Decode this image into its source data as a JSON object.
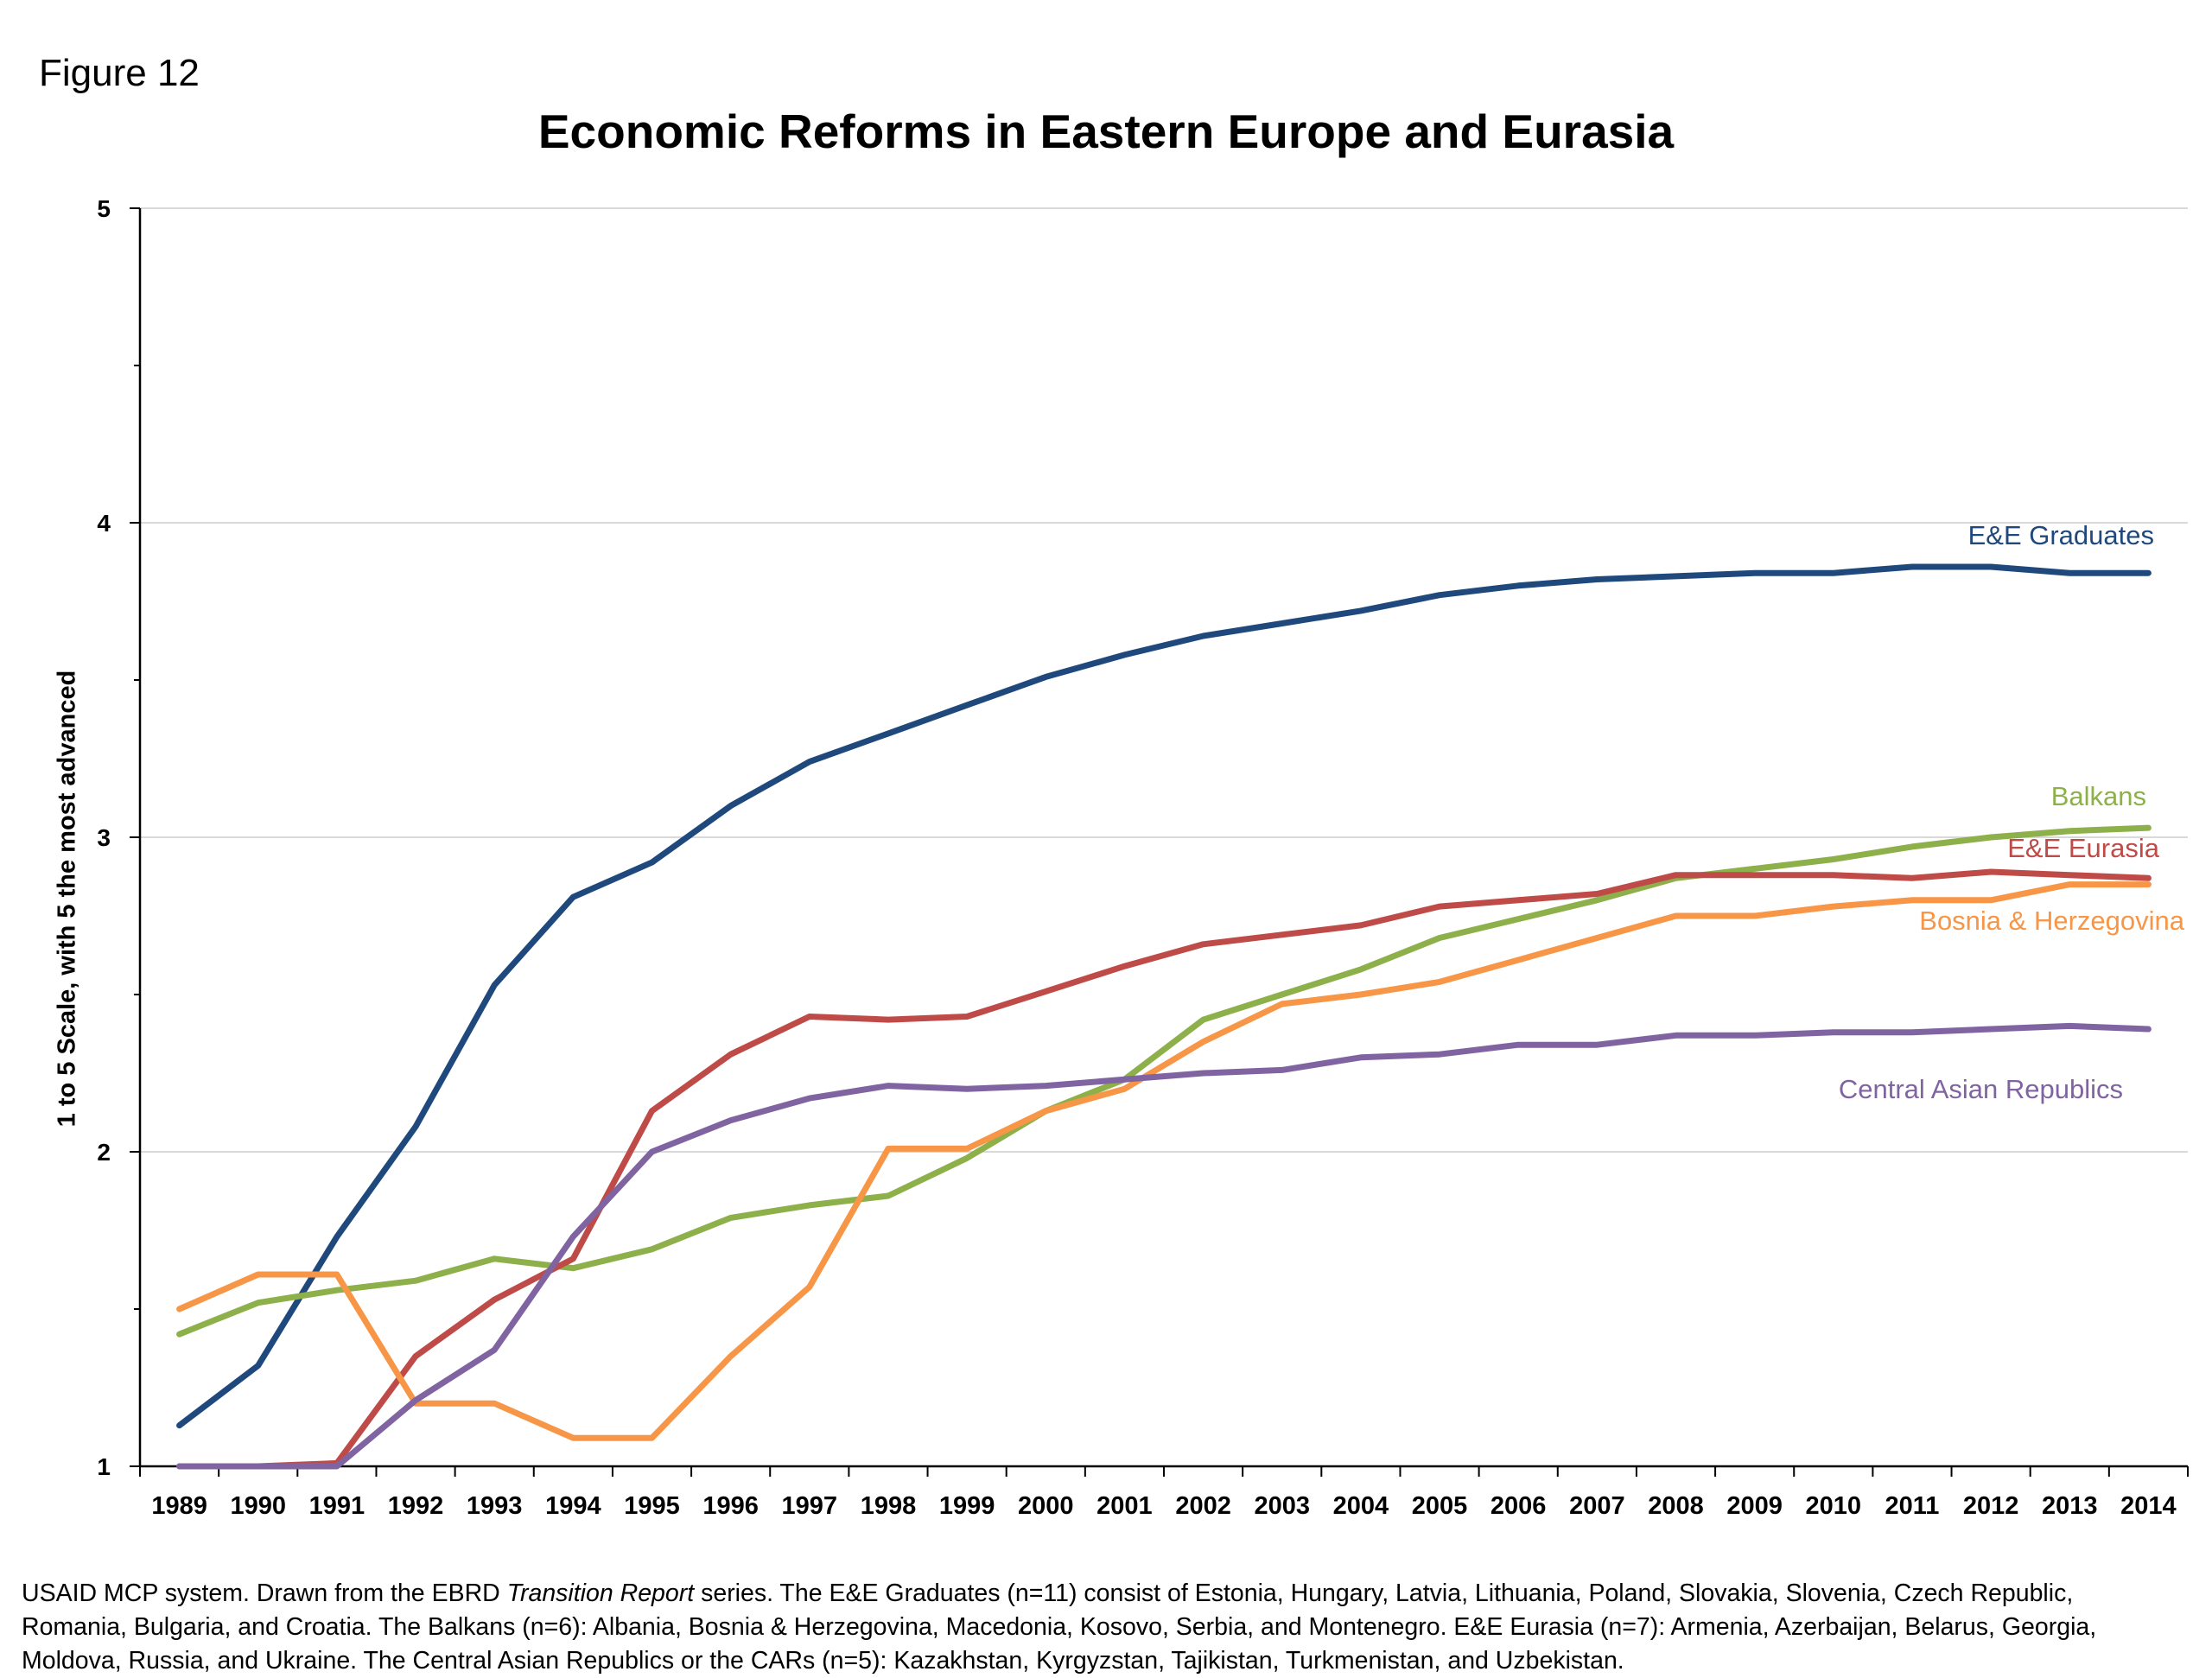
{
  "figure_label": "Figure 12",
  "chart_data": {
    "type": "line",
    "title": "Economic Reforms in Eastern Europe and Eurasia",
    "xlabel": "",
    "ylabel": "1 to 5 Scale, with 5 the most advanced",
    "ylim": [
      1,
      5
    ],
    "yticks": [
      "1",
      "2",
      "3",
      "4",
      "5"
    ],
    "grid": true,
    "legend": "inline labels at right",
    "categories": [
      "1989",
      "1990",
      "1991",
      "1992",
      "1993",
      "1994",
      "1995",
      "1996",
      "1997",
      "1998",
      "1999",
      "2000",
      "2001",
      "2002",
      "2003",
      "2004",
      "2005",
      "2006",
      "2007",
      "2008",
      "2009",
      "2010",
      "2011",
      "2012",
      "2013",
      "2014"
    ],
    "series": [
      {
        "name": "E&E Graduates",
        "color": "#1F497D",
        "values": [
          1.13,
          1.32,
          1.73,
          2.08,
          2.53,
          2.81,
          2.92,
          3.1,
          3.24,
          3.33,
          3.42,
          3.51,
          3.58,
          3.64,
          3.68,
          3.72,
          3.77,
          3.8,
          3.82,
          3.83,
          3.84,
          3.84,
          3.86,
          3.86,
          3.84,
          3.84
        ]
      },
      {
        "name": "Balkans",
        "color": "#8DB04A",
        "values": [
          1.42,
          1.52,
          1.56,
          1.59,
          1.66,
          1.63,
          1.69,
          1.79,
          1.83,
          1.86,
          1.98,
          2.13,
          2.23,
          2.42,
          2.5,
          2.58,
          2.68,
          2.74,
          2.8,
          2.87,
          2.9,
          2.93,
          2.97,
          3.0,
          3.02,
          3.03
        ]
      },
      {
        "name": "E&E Eurasia",
        "color": "#BE4B48",
        "values": [
          1.0,
          1.0,
          1.01,
          1.35,
          1.53,
          1.66,
          2.13,
          2.31,
          2.43,
          2.42,
          2.43,
          2.51,
          2.59,
          2.66,
          2.69,
          2.72,
          2.78,
          2.8,
          2.82,
          2.88,
          2.88,
          2.88,
          2.87,
          2.89,
          2.88,
          2.87
        ]
      },
      {
        "name": "Bosnia & Herzegovina",
        "color": "#F79646",
        "values": [
          1.5,
          1.61,
          1.61,
          1.2,
          1.2,
          1.09,
          1.09,
          1.35,
          1.57,
          2.01,
          2.01,
          2.13,
          2.2,
          2.35,
          2.47,
          2.5,
          2.54,
          2.61,
          2.68,
          2.75,
          2.75,
          2.78,
          2.8,
          2.8,
          2.85,
          2.85
        ]
      },
      {
        "name": "Central Asian Republics",
        "color": "#8064A2",
        "values": [
          1.0,
          1.0,
          1.0,
          1.21,
          1.37,
          1.73,
          2.0,
          2.1,
          2.17,
          2.21,
          2.2,
          2.21,
          2.23,
          2.25,
          2.26,
          2.3,
          2.31,
          2.34,
          2.34,
          2.37,
          2.37,
          2.38,
          2.38,
          2.39,
          2.4,
          2.39
        ]
      }
    ]
  },
  "note": {
    "line1_before": "USAID MCP system. Drawn from the EBRD ",
    "line1_italic": "Transition Report",
    "line1_after": " series.  The E&E Graduates (n=11) consist of Estonia, Hungary, Latvia, Lithuania, Poland, Slovakia, Slovenia, Czech Republic,",
    "line2": "Romania, Bulgaria, and Croatia. The Balkans (n=6): Albania, Bosnia & Herzegovina, Macedonia, Kosovo, Serbia, and Montenegro. E&E Eurasia (n=7): Armenia, Azerbaijan, Belarus, Georgia,",
    "line3": "Moldova, Russia, and Ukraine.  The Central Asian Republics or the CARs (n=5): Kazakhstan, Kyrgyzstan, Tajikistan, Turkmenistan, and Uzbekistan."
  }
}
